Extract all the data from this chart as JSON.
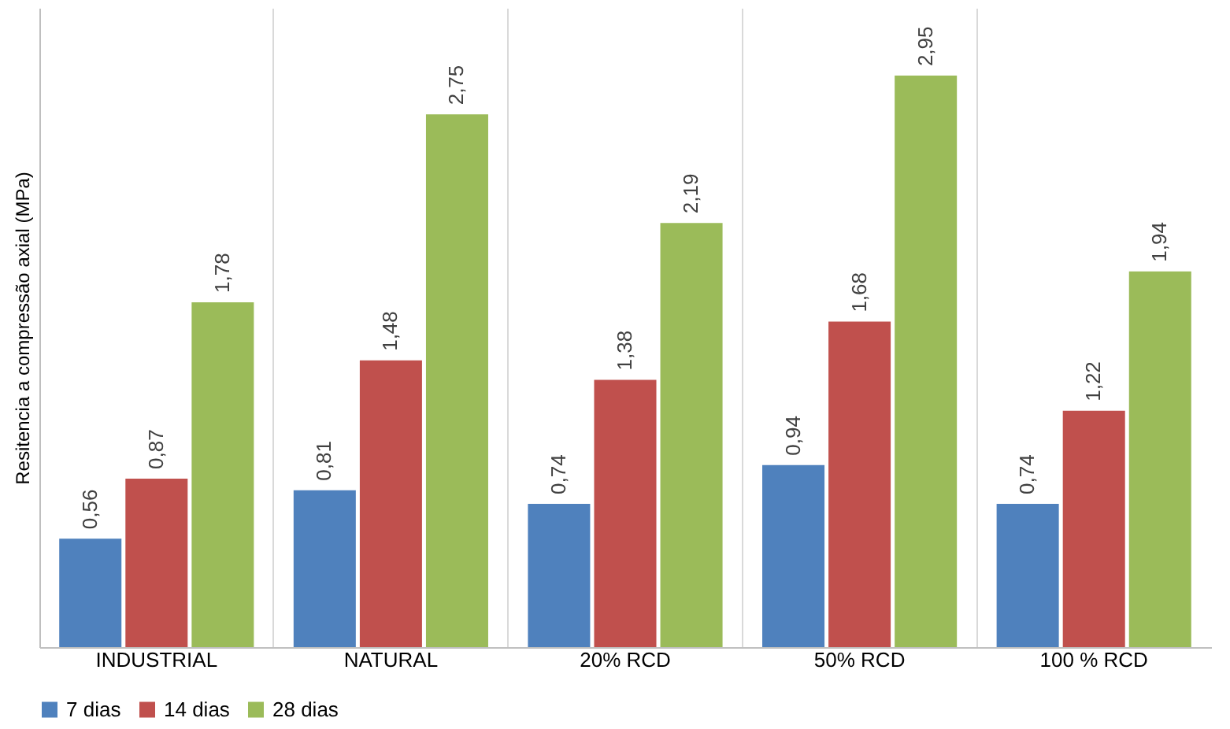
{
  "chart_data": {
    "type": "bar",
    "ylabel": "Resitencia a compressão axial (MPa)",
    "categories": [
      "INDUSTRIAL",
      "NATURAL",
      "20% RCD",
      "50% RCD",
      "100 % RCD"
    ],
    "series": [
      {
        "name": "7 dias",
        "color": "#4f81bd",
        "values": [
          0.56,
          0.81,
          0.74,
          0.94,
          0.74
        ],
        "value_labels": [
          "0,56",
          "0,81",
          "0,74",
          "0,94",
          "0,74"
        ]
      },
      {
        "name": "14 dias",
        "color": "#c0504d",
        "values": [
          0.87,
          1.48,
          1.38,
          1.68,
          1.22
        ],
        "value_labels": [
          "0,87",
          "1,48",
          "1,38",
          "1,68",
          "1,22"
        ]
      },
      {
        "name": "28 dias",
        "color": "#9bbb59",
        "values": [
          1.78,
          2.75,
          2.19,
          2.95,
          1.94
        ],
        "value_labels": [
          "1,78",
          "2,75",
          "2,19",
          "2,95",
          "1,94"
        ]
      }
    ],
    "ylim": [
      0,
      3.3
    ],
    "tick_labels": "x",
    "grid": "x",
    "legend": "bottom"
  }
}
